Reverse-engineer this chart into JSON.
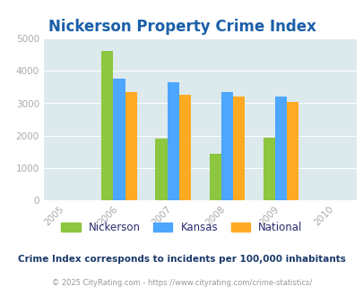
{
  "title": "Nickerson Property Crime Index",
  "years": [
    2005,
    2006,
    2007,
    2008,
    2009,
    2010
  ],
  "bar_years": [
    2006,
    2007,
    2008,
    2009
  ],
  "nickerson": [
    4600,
    1900,
    1430,
    1950
  ],
  "kansas": [
    3750,
    3650,
    3350,
    3200
  ],
  "national": [
    3350,
    3250,
    3200,
    3050
  ],
  "nickerson_color": "#8dc63f",
  "kansas_color": "#4da6ff",
  "national_color": "#ffaa22",
  "bg_color": "#dce9ed",
  "ylim": [
    0,
    5000
  ],
  "yticks": [
    0,
    1000,
    2000,
    3000,
    4000,
    5000
  ],
  "title_color": "#1a5fa8",
  "title_fontsize": 12,
  "legend_labels": [
    "Nickerson",
    "Kansas",
    "National"
  ],
  "legend_text_color": "#2a2a6e",
  "footnote1": "Crime Index corresponds to incidents per 100,000 inhabitants",
  "footnote2": "© 2025 CityRating.com - https://www.cityrating.com/crime-statistics/",
  "footnote1_color": "#1a3a6b",
  "footnote2_color": "#999999",
  "bar_width": 0.22,
  "tick_color": "#aaaaaa"
}
